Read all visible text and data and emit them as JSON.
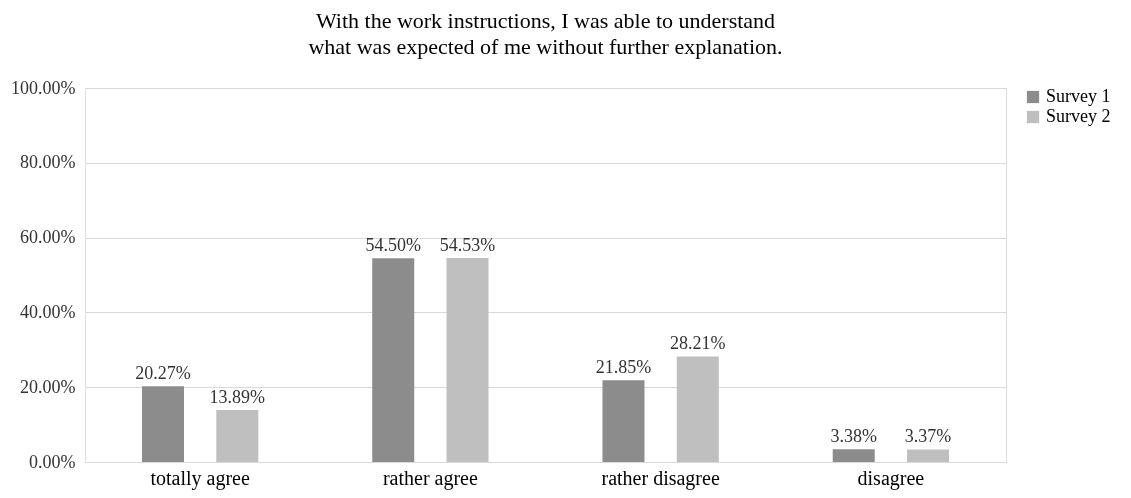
{
  "chart_data": {
    "type": "bar",
    "title": "With the work instructions, I was able to understand what was expected of me without further explanation.",
    "categories": [
      "totally agree",
      "rather agree",
      "rather disagree",
      "disagree"
    ],
    "series": [
      {
        "name": "Survey 1",
        "color": "#8c8c8c",
        "values": [
          20.27,
          54.5,
          21.85,
          3.38
        ],
        "value_labels": [
          "20.27%",
          "54.50%",
          "21.85%",
          "3.38%"
        ]
      },
      {
        "name": "Survey 2",
        "color": "#bfbfbf",
        "values": [
          13.89,
          54.53,
          28.21,
          3.37
        ],
        "value_labels": [
          "13.89%",
          "54.53%",
          "28.21%",
          "3.37%"
        ]
      }
    ],
    "ylim": [
      0,
      100
    ],
    "yticks": [
      {
        "value": 0,
        "label": "0.00%"
      },
      {
        "value": 20,
        "label": "20.00%"
      },
      {
        "value": 40,
        "label": "40.00%"
      },
      {
        "value": 60,
        "label": "60.00%"
      },
      {
        "value": 80,
        "label": "80.00%"
      },
      {
        "value": 100,
        "label": "100.00%"
      }
    ],
    "grid": "y",
    "legend": "right"
  }
}
